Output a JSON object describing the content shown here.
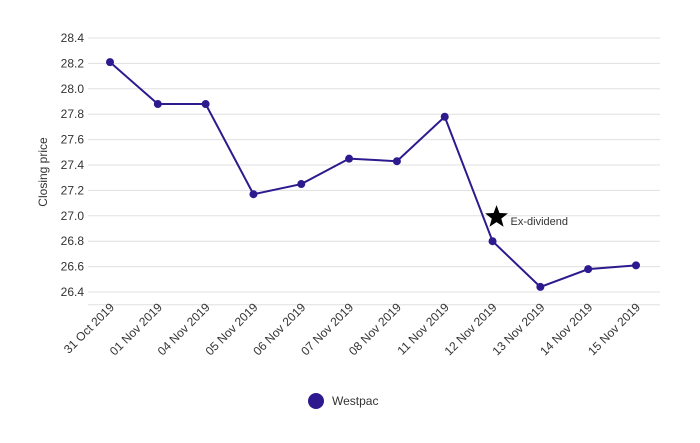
{
  "chart_data": {
    "type": "line",
    "xlabel": "",
    "ylabel": "Closing price",
    "ylim": [
      26.3,
      28.4
    ],
    "yticks": [
      "28.4",
      "28.2",
      "28.0",
      "27.8",
      "27.6",
      "27.4",
      "27.2",
      "27.0",
      "26.8",
      "26.6",
      "26.4"
    ],
    "categories": [
      "31 Oct 2019",
      "01 Nov 2019",
      "04 Nov 2019",
      "05 Nov 2019",
      "06 Nov 2019",
      "07 Nov 2019",
      "08 Nov 2019",
      "11 Nov 2019",
      "12 Nov 2019",
      "13 Nov 2019",
      "14 Nov 2019",
      "15 Nov 2019"
    ],
    "series": [
      {
        "name": "Westpac",
        "color": "#2e1a8e",
        "values": [
          28.21,
          27.88,
          27.88,
          27.17,
          27.25,
          27.45,
          27.43,
          27.78,
          26.8,
          26.44,
          26.58,
          26.61
        ]
      }
    ],
    "annotations": [
      {
        "text": "Ex-dividend",
        "icon": "star-icon",
        "x": "12 Nov 2019",
        "y": 26.99
      }
    ],
    "grid": true,
    "legend": "bottom-center"
  }
}
